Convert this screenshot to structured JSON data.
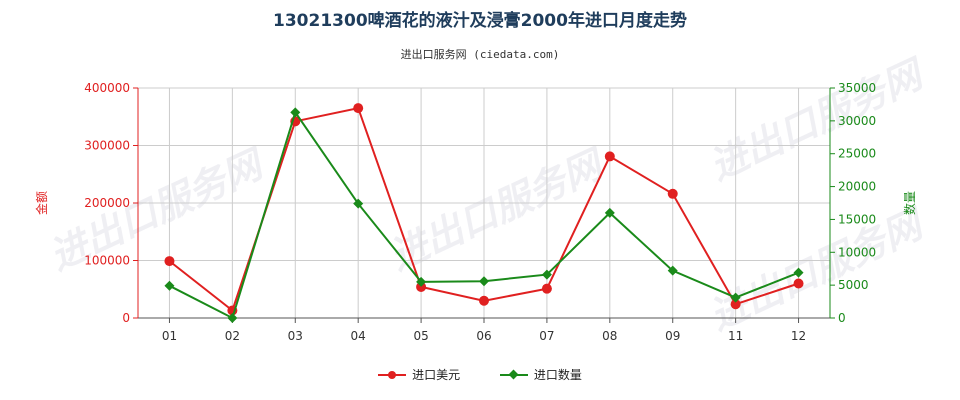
{
  "title": "13021300啤酒花的液汁及浸膏2000年进口月度走势",
  "subtitle": "进出口服务网 (ciedata.com)",
  "watermark": "进出口服务网",
  "chart_data": {
    "type": "line",
    "categories": [
      "01",
      "02",
      "03",
      "04",
      "05",
      "06",
      "07",
      "08",
      "09",
      "11",
      "12"
    ],
    "series": [
      {
        "name": "进口美元",
        "axis": "left",
        "color": "#e02020",
        "marker": "circle",
        "values": [
          99000,
          13000,
          342000,
          365000,
          54000,
          30000,
          51000,
          281000,
          216000,
          24000,
          60000
        ]
      },
      {
        "name": "进口数量",
        "axis": "right",
        "color": "#1a8a1a",
        "marker": "diamond",
        "values": [
          4900,
          0,
          31300,
          17400,
          5500,
          5600,
          6600,
          16000,
          7200,
          3100,
          6900
        ]
      }
    ],
    "y_left": {
      "label": "金额",
      "min": 0,
      "max": 400000,
      "ticks": [
        0,
        100000,
        200000,
        300000,
        400000
      ],
      "tick_labels": [
        "0",
        "100000",
        "200000",
        "300000",
        "400000"
      ],
      "color": "#e02020"
    },
    "y_right": {
      "label": "数量",
      "min": 0,
      "max": 35000,
      "ticks": [
        0,
        5000,
        10000,
        15000,
        20000,
        25000,
        30000,
        35000
      ],
      "tick_labels": [
        "0",
        "5000",
        "10000",
        "15000",
        "20000",
        "25000",
        "30000",
        "35000"
      ],
      "color": "#1a8a1a"
    },
    "grid": true,
    "legend_position": "bottom-center"
  }
}
